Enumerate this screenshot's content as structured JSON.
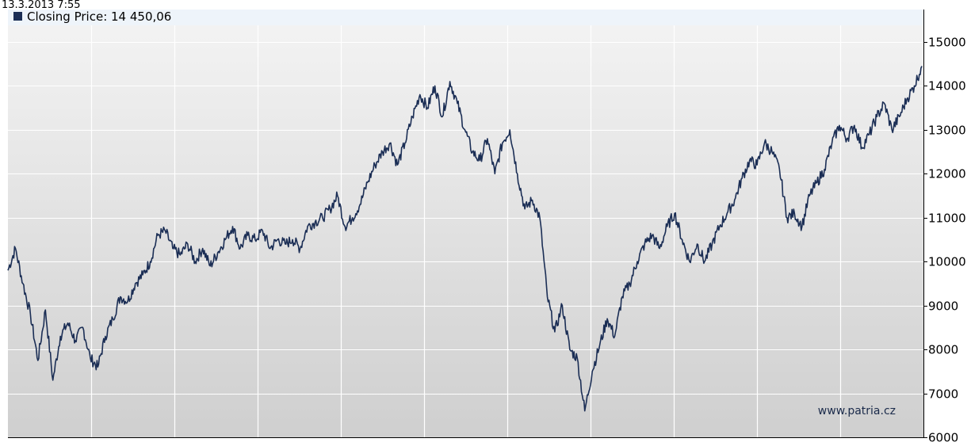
{
  "header": {
    "timestamp": "13.3.2013 7:55",
    "legend_label": "Closing Price: 14 450,06"
  },
  "watermark": "www.patria.cz",
  "colors": {
    "line": "#1b2e55",
    "grid": "#ffffff",
    "background_top": "#f4f4f4",
    "background_bottom": "#cfcfcf",
    "legend_band": "#eef4fa"
  },
  "chart_data": {
    "type": "line",
    "title": "",
    "xlabel": "",
    "ylabel": "",
    "ylim": [
      6000,
      15500
    ],
    "y_ticks": [
      6000,
      7000,
      8000,
      9000,
      10000,
      11000,
      12000,
      13000,
      14000,
      15000
    ],
    "y_tick_labels": [
      "6000",
      "7000",
      "8000",
      "9000",
      "10000",
      "11000",
      "12000",
      "13000",
      "14000",
      "15000"
    ],
    "x_gridlines": 11,
    "grid": true,
    "legend": "top-left",
    "series": [
      {
        "name": "Closing Price",
        "values": [
          9800,
          10300,
          9500,
          8800,
          7750,
          8900,
          7300,
          8300,
          8600,
          8200,
          8500,
          7800,
          7600,
          8300,
          8700,
          9200,
          9100,
          9500,
          9700,
          10000,
          10600,
          10700,
          10300,
          10150,
          10400,
          10000,
          10300,
          9900,
          10200,
          10500,
          10800,
          10300,
          10600,
          10500,
          10700,
          10300,
          10500,
          10400,
          10500,
          10300,
          10800,
          10900,
          11000,
          11200,
          11500,
          10800,
          11000,
          11300,
          11800,
          12200,
          12500,
          12700,
          12200,
          12700,
          13300,
          13800,
          13500,
          14000,
          13300,
          14100,
          13600,
          13000,
          12500,
          12300,
          12800,
          12000,
          12700,
          13000,
          12000,
          11200,
          11400,
          11000,
          9200,
          8400,
          9000,
          8000,
          7800,
          6600,
          7500,
          8100,
          8700,
          8300,
          9200,
          9500,
          10000,
          10400,
          10600,
          10300,
          10800,
          11100,
          10500,
          10000,
          10400,
          10000,
          10400,
          10800,
          11100,
          11400,
          11900,
          12300,
          12200,
          12700,
          12500,
          12100,
          11000,
          11100,
          10800,
          11500,
          11800,
          12100,
          12700,
          13100,
          12800,
          13100,
          12600,
          12900,
          13300,
          13600,
          13000,
          13300,
          13700,
          14000,
          14450
        ]
      }
    ]
  }
}
